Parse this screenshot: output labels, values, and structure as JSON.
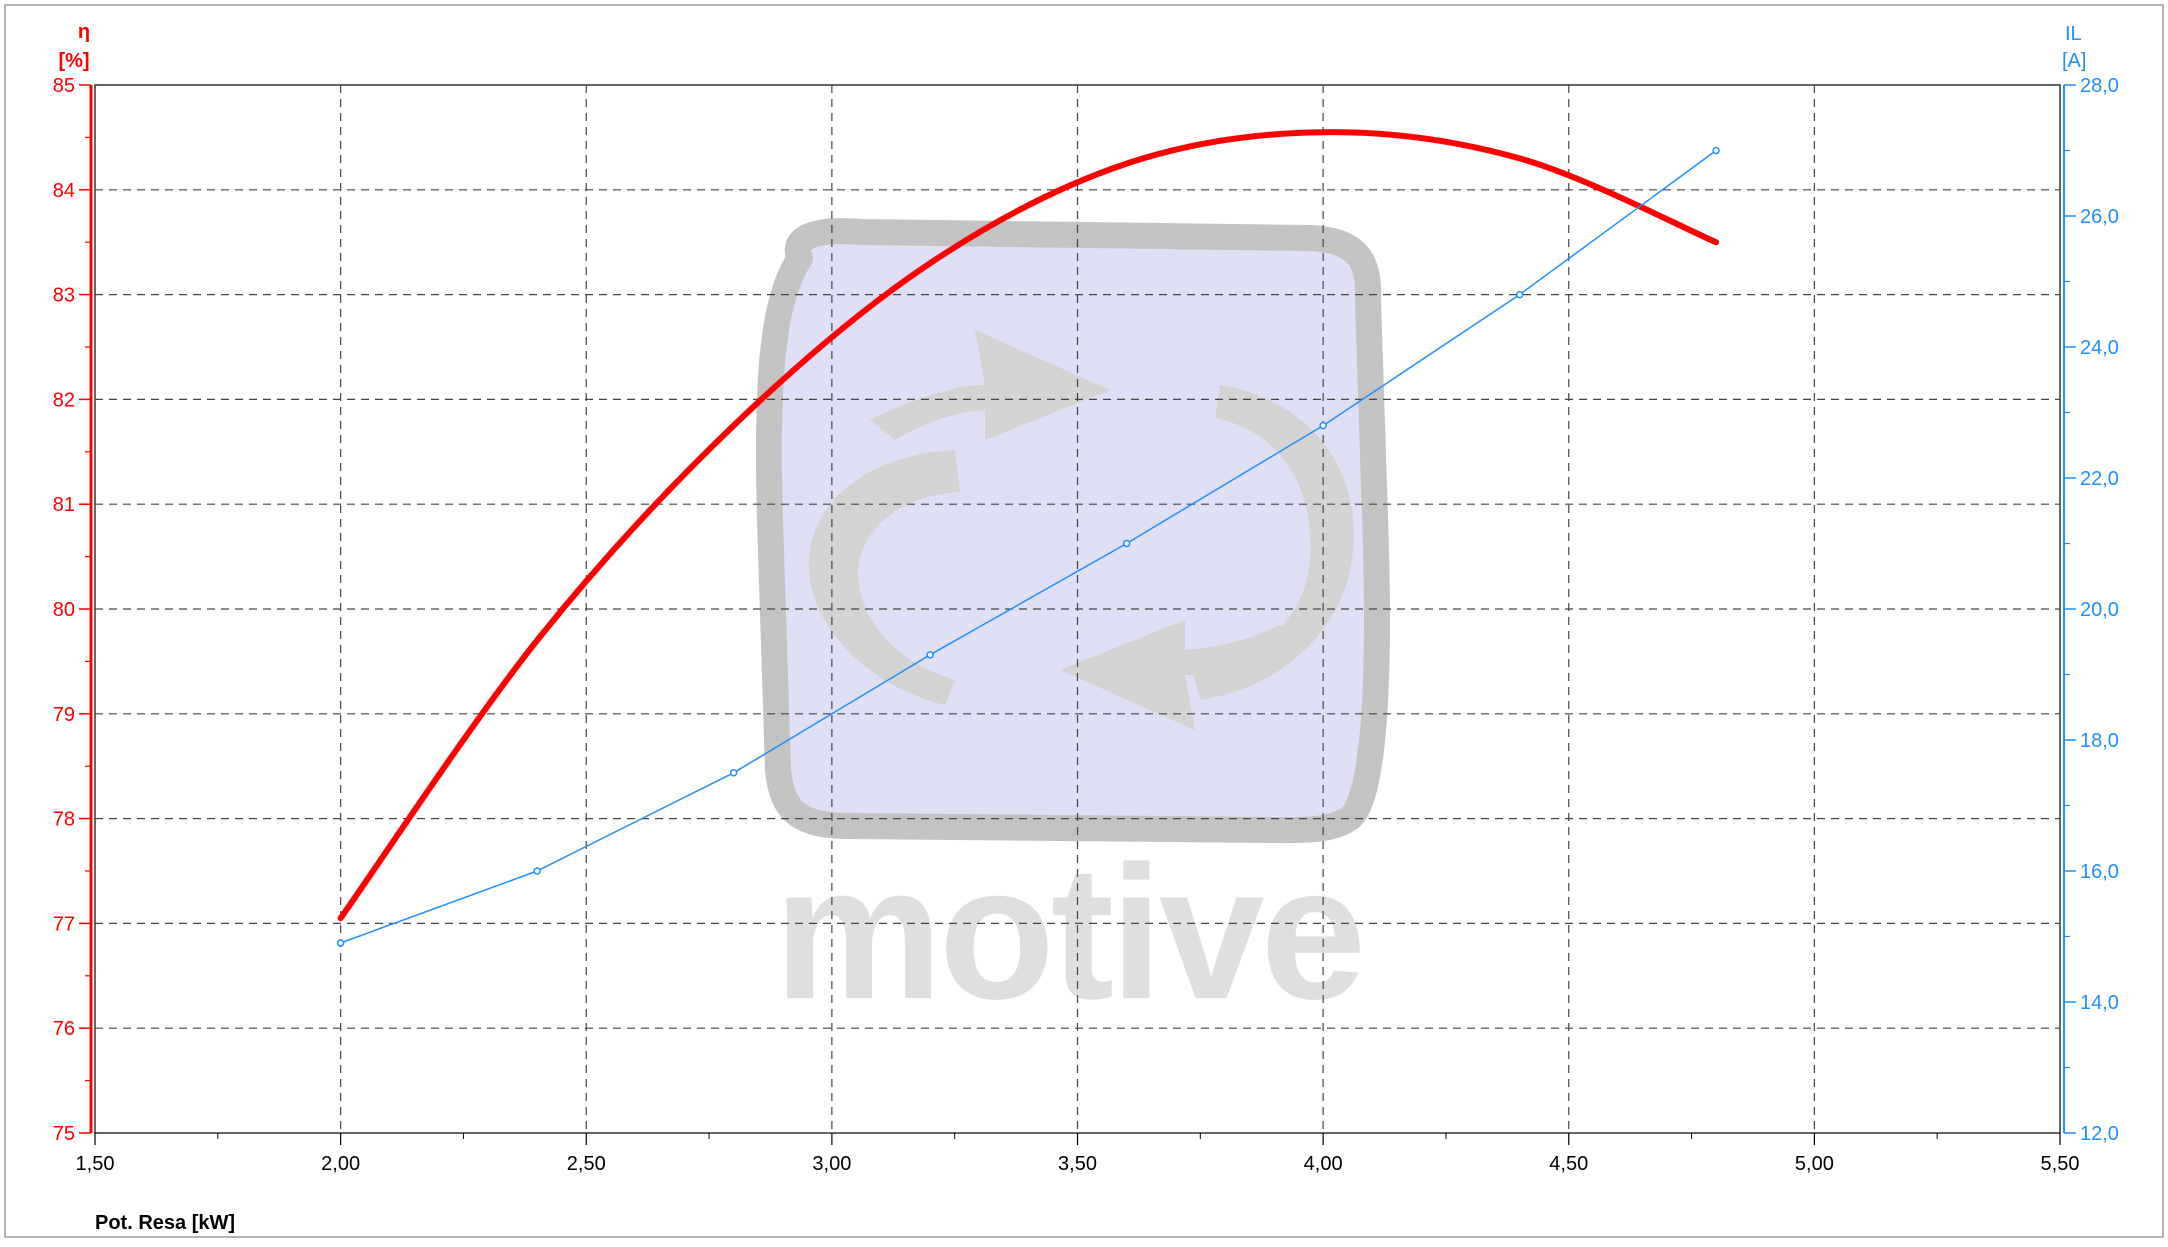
{
  "chart_data": {
    "type": "line",
    "xlabel": "Pot. Resa [kW]",
    "xlim": [
      1.5,
      5.5
    ],
    "x_ticks": [
      "1,50",
      "2,00",
      "2,50",
      "3,00",
      "3,50",
      "4,00",
      "4,50",
      "5,00",
      "5,50"
    ],
    "y_left": {
      "label": "η",
      "unit": "[%]",
      "ylim": [
        75,
        85
      ],
      "ticks": [
        "75",
        "76",
        "77",
        "78",
        "79",
        "80",
        "81",
        "82",
        "83",
        "84",
        "85"
      ],
      "color": "#ff0000"
    },
    "y_right": {
      "label": "IL",
      "unit": "[A]",
      "ylim": [
        12,
        28
      ],
      "ticks": [
        "12,0",
        "14,0",
        "16,0",
        "18,0",
        "20,0",
        "22,0",
        "24,0",
        "26,0",
        "28,0"
      ],
      "color": "#1e90ff"
    },
    "grid": true,
    "series": [
      {
        "axis": "left",
        "color": "#ff0000",
        "curve": true,
        "x": [
          2.0,
          2.4,
          2.8,
          3.2,
          3.6,
          4.0,
          4.4,
          4.8
        ],
        "y": [
          77.05,
          79.7,
          81.75,
          83.3,
          84.25,
          84.55,
          84.3,
          83.5
        ]
      },
      {
        "axis": "right",
        "color": "#1e90ff",
        "markers": true,
        "x": [
          2.0,
          2.4,
          2.8,
          3.2,
          3.6,
          4.0,
          4.4,
          4.8
        ],
        "y": [
          14.9,
          16.0,
          17.5,
          19.3,
          21.0,
          22.8,
          24.8,
          27.0
        ]
      }
    ]
  },
  "watermark": {
    "text": "motive"
  }
}
